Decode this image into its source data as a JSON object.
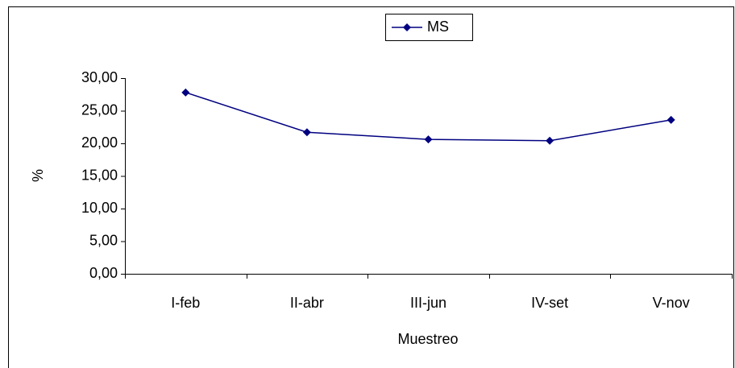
{
  "chart_data": {
    "type": "line",
    "xlabel": "Muestreo",
    "ylabel": "%",
    "categories": [
      "I-feb",
      "II-abr",
      "III-jun",
      "IV-set",
      "V-nov"
    ],
    "series": [
      {
        "name": "MS",
        "color": "#000080",
        "values": [
          27.8,
          21.7,
          20.6,
          20.4,
          23.6
        ]
      }
    ],
    "ylim": [
      0,
      30
    ],
    "yticks": [
      {
        "value": 0,
        "label": "0,00"
      },
      {
        "value": 5,
        "label": "5,00"
      },
      {
        "value": 10,
        "label": "10,00"
      },
      {
        "value": 15,
        "label": "15,00"
      },
      {
        "value": 20,
        "label": "20,00"
      },
      {
        "value": 25,
        "label": "25,00"
      },
      {
        "value": 30,
        "label": "30,00"
      }
    ],
    "grid": false,
    "legend": "top"
  }
}
